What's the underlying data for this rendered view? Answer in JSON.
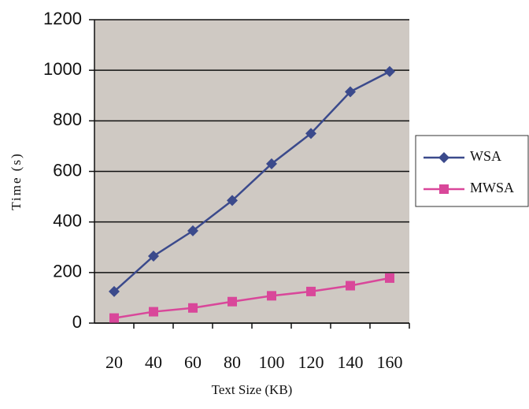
{
  "chart_data": {
    "type": "line",
    "x_label": "Text Size (KB)",
    "y_label": "Time (s)",
    "categories": [
      "20",
      "40",
      "60",
      "80",
      "100",
      "120",
      "140",
      "160"
    ],
    "series": [
      {
        "name": "WSA",
        "color": "#3b4a8c",
        "marker": "diamond",
        "values": [
          125,
          265,
          365,
          485,
          630,
          750,
          915,
          995
        ]
      },
      {
        "name": "MWSA",
        "color": "#d9479a",
        "marker": "square",
        "values": [
          20,
          45,
          60,
          85,
          108,
          125,
          148,
          178
        ]
      }
    ],
    "ylim": [
      0,
      1200
    ],
    "yticks": [
      0,
      200,
      400,
      600,
      800,
      1000,
      1200
    ],
    "grid": true,
    "legend": "right"
  }
}
